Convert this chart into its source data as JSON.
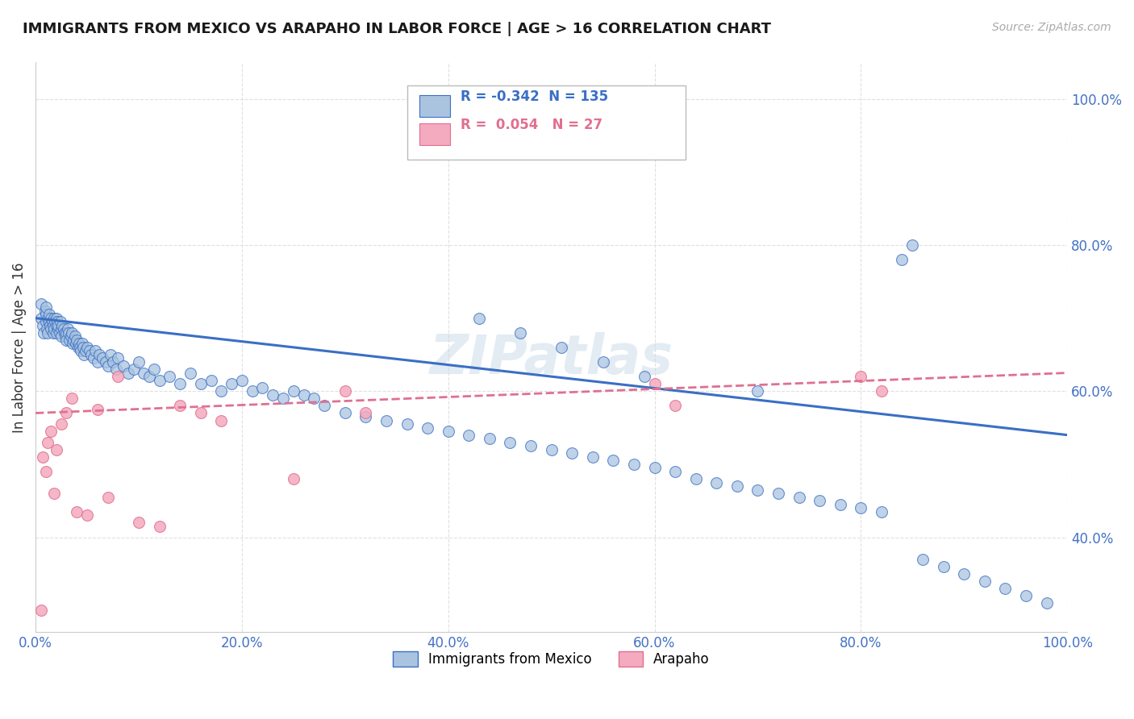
{
  "title": "IMMIGRANTS FROM MEXICO VS ARAPAHO IN LABOR FORCE | AGE > 16 CORRELATION CHART",
  "source": "Source: ZipAtlas.com",
  "ylabel": "In Labor Force | Age > 16",
  "legend_label_blue": "Immigrants from Mexico",
  "legend_label_pink": "Arapaho",
  "R_blue": -0.342,
  "N_blue": 135,
  "R_pink": 0.054,
  "N_pink": 27,
  "blue_color": "#aac4e0",
  "blue_line_color": "#3a6fc4",
  "pink_color": "#f4aabf",
  "pink_line_color": "#e07090",
  "background_color": "#ffffff",
  "grid_color": "#e0e0e0",
  "title_color": "#1a1a1a",
  "tick_color": "#4472c4",
  "xlim": [
    0.0,
    1.0
  ],
  "ylim": [
    0.27,
    1.05
  ],
  "x_ticks": [
    0.0,
    0.2,
    0.4,
    0.6,
    0.8,
    1.0
  ],
  "y_ticks": [
    0.4,
    0.6,
    0.8,
    1.0
  ],
  "blue_scatter_x": [
    0.005,
    0.005,
    0.007,
    0.008,
    0.009,
    0.01,
    0.01,
    0.01,
    0.011,
    0.012,
    0.012,
    0.013,
    0.013,
    0.014,
    0.015,
    0.015,
    0.016,
    0.017,
    0.017,
    0.018,
    0.018,
    0.019,
    0.02,
    0.02,
    0.02,
    0.021,
    0.022,
    0.022,
    0.023,
    0.024,
    0.025,
    0.025,
    0.026,
    0.027,
    0.028,
    0.029,
    0.03,
    0.03,
    0.031,
    0.032,
    0.033,
    0.034,
    0.035,
    0.036,
    0.037,
    0.038,
    0.039,
    0.04,
    0.041,
    0.042,
    0.043,
    0.044,
    0.045,
    0.046,
    0.047,
    0.048,
    0.05,
    0.052,
    0.054,
    0.056,
    0.058,
    0.06,
    0.062,
    0.065,
    0.068,
    0.07,
    0.073,
    0.075,
    0.078,
    0.08,
    0.085,
    0.09,
    0.095,
    0.1,
    0.105,
    0.11,
    0.115,
    0.12,
    0.13,
    0.14,
    0.15,
    0.16,
    0.17,
    0.18,
    0.19,
    0.2,
    0.21,
    0.22,
    0.23,
    0.24,
    0.25,
    0.26,
    0.27,
    0.28,
    0.3,
    0.32,
    0.34,
    0.36,
    0.38,
    0.4,
    0.42,
    0.44,
    0.46,
    0.48,
    0.5,
    0.52,
    0.54,
    0.56,
    0.58,
    0.6,
    0.62,
    0.64,
    0.66,
    0.68,
    0.7,
    0.72,
    0.74,
    0.76,
    0.78,
    0.8,
    0.82,
    0.84,
    0.86,
    0.88,
    0.9,
    0.92,
    0.94,
    0.96,
    0.98,
    0.85,
    0.43,
    0.47,
    0.51,
    0.55,
    0.59,
    0.7
  ],
  "blue_scatter_y": [
    0.7,
    0.72,
    0.69,
    0.68,
    0.71,
    0.695,
    0.705,
    0.715,
    0.685,
    0.7,
    0.68,
    0.695,
    0.705,
    0.69,
    0.685,
    0.7,
    0.695,
    0.68,
    0.69,
    0.685,
    0.7,
    0.695,
    0.69,
    0.68,
    0.7,
    0.695,
    0.685,
    0.69,
    0.68,
    0.695,
    0.685,
    0.675,
    0.69,
    0.685,
    0.68,
    0.675,
    0.68,
    0.67,
    0.685,
    0.68,
    0.67,
    0.675,
    0.68,
    0.665,
    0.67,
    0.675,
    0.665,
    0.67,
    0.66,
    0.665,
    0.66,
    0.655,
    0.665,
    0.66,
    0.65,
    0.655,
    0.66,
    0.655,
    0.65,
    0.645,
    0.655,
    0.64,
    0.65,
    0.645,
    0.64,
    0.635,
    0.65,
    0.64,
    0.63,
    0.645,
    0.635,
    0.625,
    0.63,
    0.64,
    0.625,
    0.62,
    0.63,
    0.615,
    0.62,
    0.61,
    0.625,
    0.61,
    0.615,
    0.6,
    0.61,
    0.615,
    0.6,
    0.605,
    0.595,
    0.59,
    0.6,
    0.595,
    0.59,
    0.58,
    0.57,
    0.565,
    0.56,
    0.555,
    0.55,
    0.545,
    0.54,
    0.535,
    0.53,
    0.525,
    0.52,
    0.515,
    0.51,
    0.505,
    0.5,
    0.495,
    0.49,
    0.48,
    0.475,
    0.47,
    0.465,
    0.46,
    0.455,
    0.45,
    0.445,
    0.44,
    0.435,
    0.78,
    0.37,
    0.36,
    0.35,
    0.34,
    0.33,
    0.32,
    0.31,
    0.8,
    0.7,
    0.68,
    0.66,
    0.64,
    0.62,
    0.6
  ],
  "pink_scatter_x": [
    0.005,
    0.007,
    0.01,
    0.012,
    0.015,
    0.018,
    0.02,
    0.025,
    0.03,
    0.035,
    0.04,
    0.05,
    0.06,
    0.07,
    0.08,
    0.1,
    0.12,
    0.14,
    0.16,
    0.18,
    0.25,
    0.3,
    0.32,
    0.6,
    0.62,
    0.8,
    0.82
  ],
  "pink_scatter_y": [
    0.3,
    0.51,
    0.49,
    0.53,
    0.545,
    0.46,
    0.52,
    0.555,
    0.57,
    0.59,
    0.435,
    0.43,
    0.575,
    0.455,
    0.62,
    0.42,
    0.415,
    0.58,
    0.57,
    0.56,
    0.48,
    0.6,
    0.57,
    0.61,
    0.58,
    0.62,
    0.6
  ],
  "blue_trend_x": [
    0.0,
    1.0
  ],
  "blue_trend_y": [
    0.7,
    0.54
  ],
  "pink_trend_x": [
    0.0,
    1.0
  ],
  "pink_trend_y": [
    0.57,
    0.625
  ]
}
